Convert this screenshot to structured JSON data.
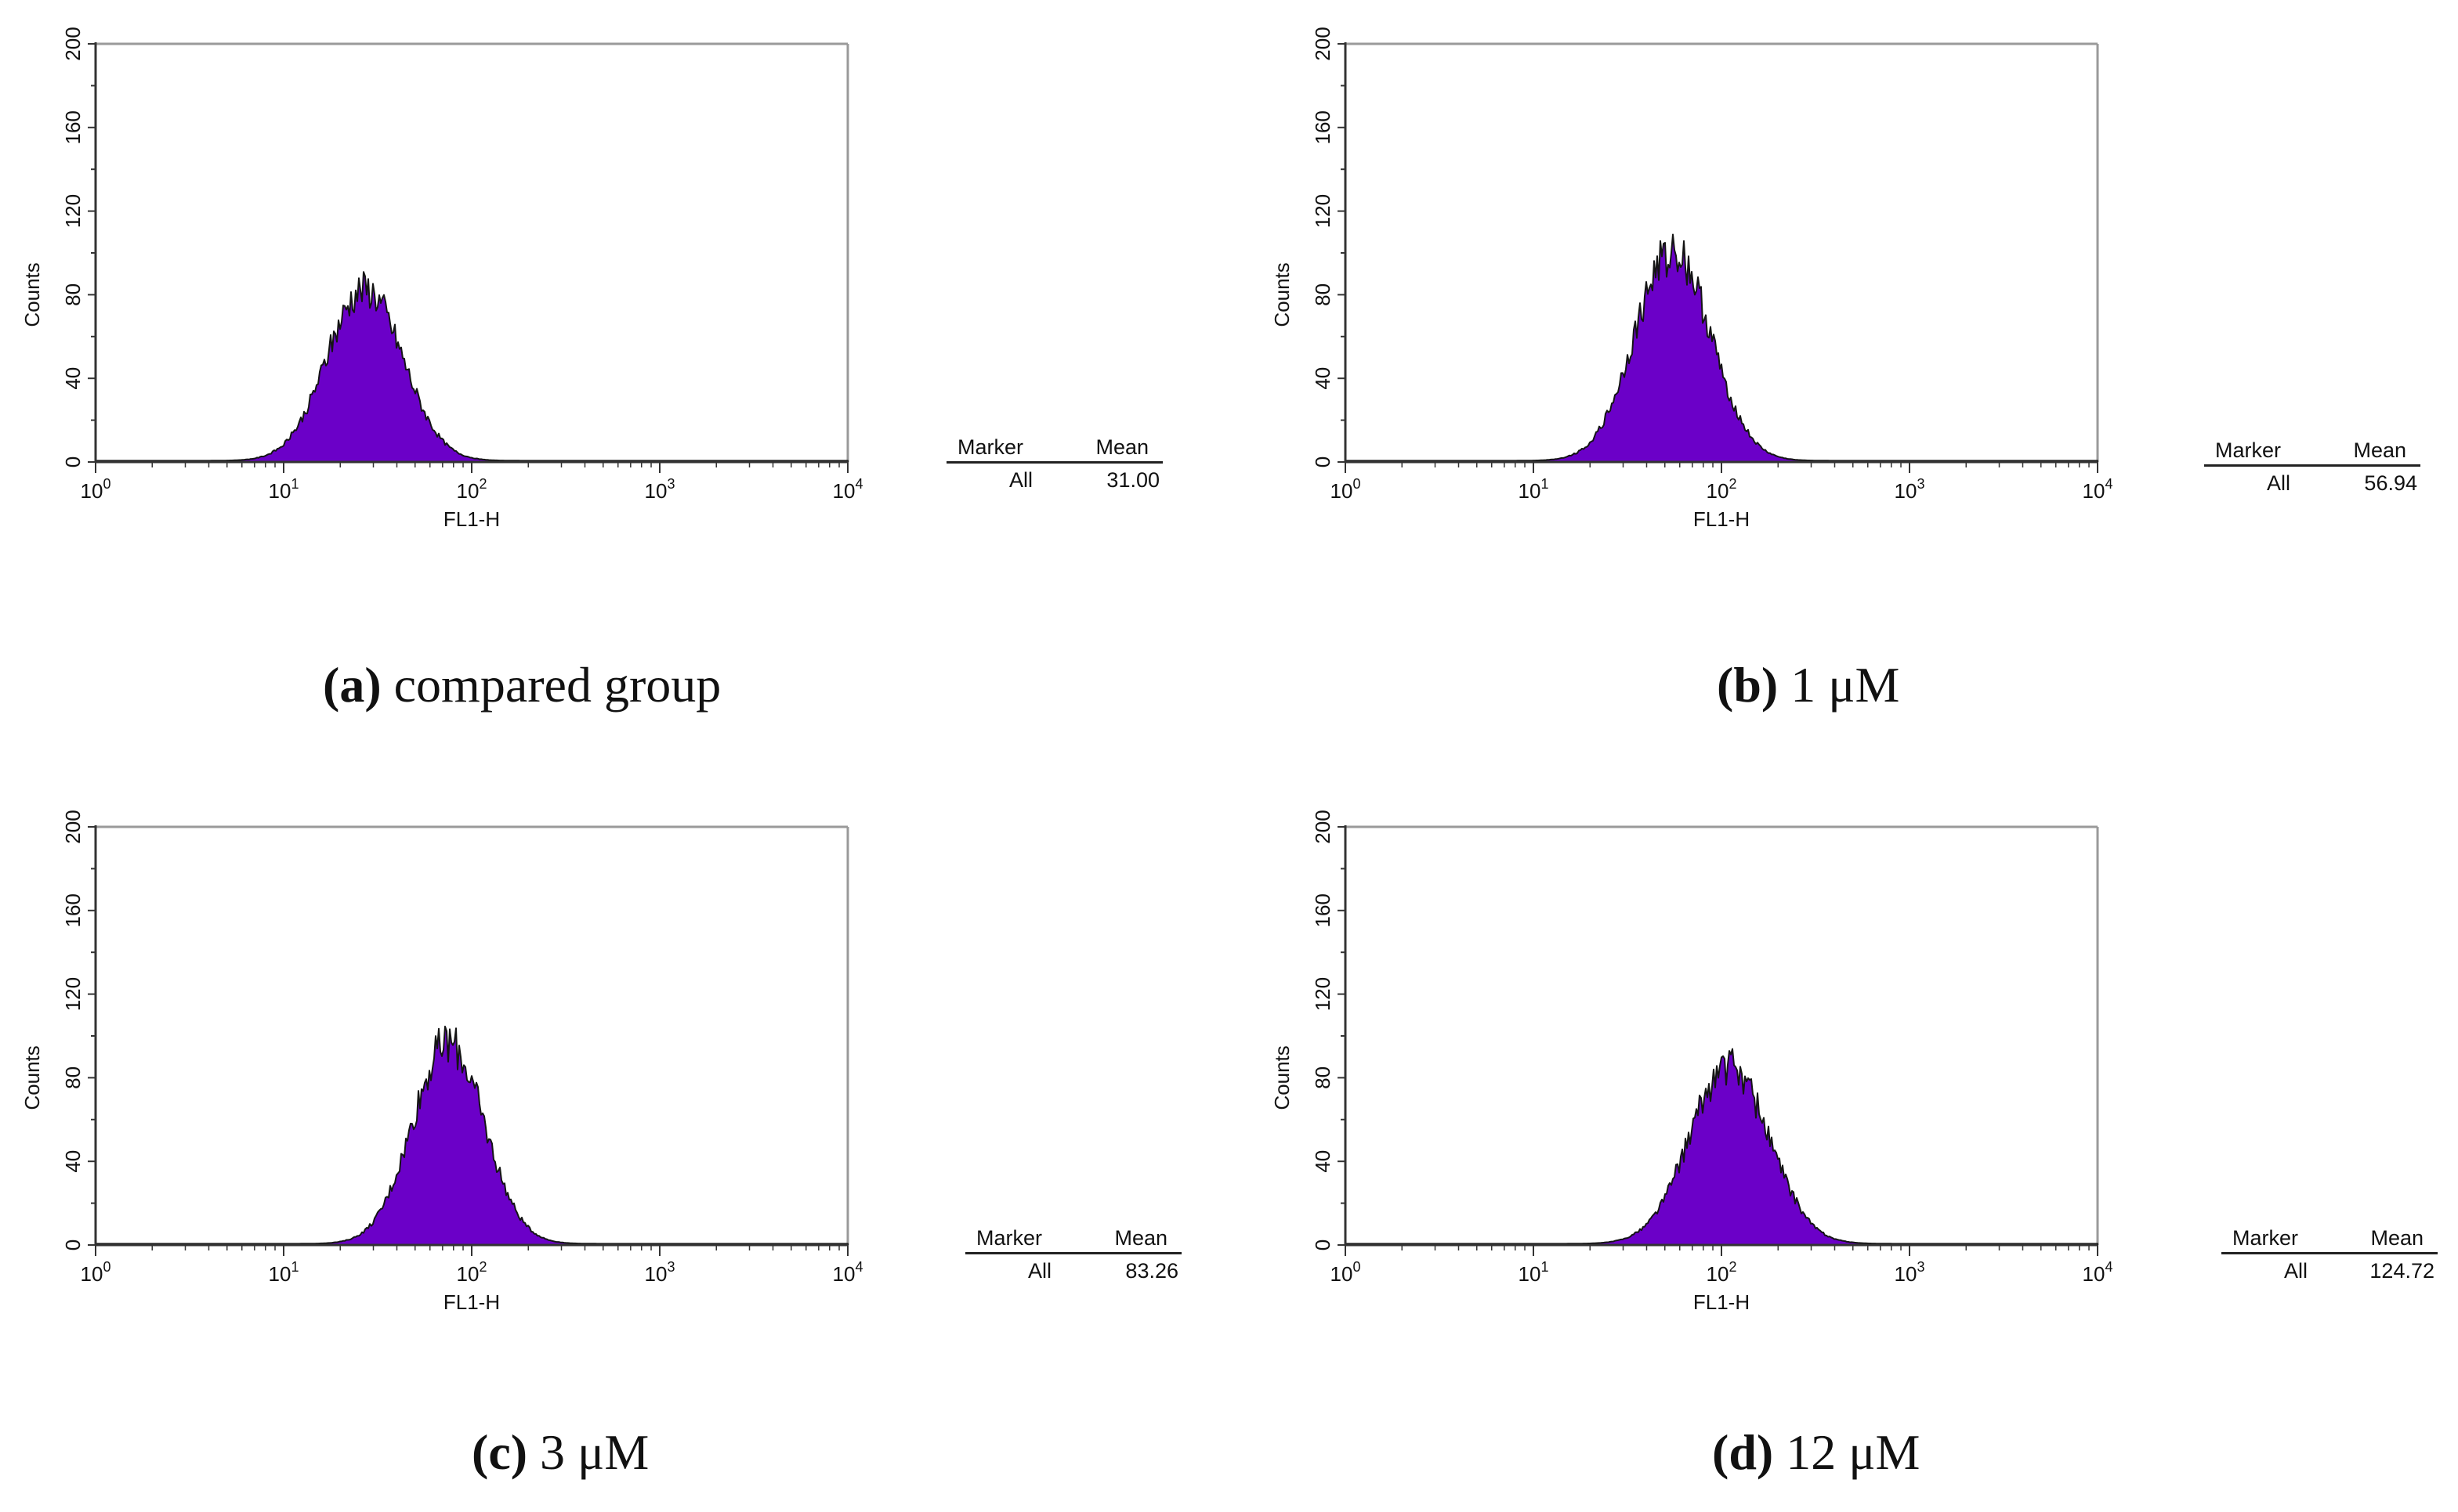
{
  "colors": {
    "fill": "#6b00c8",
    "stroke": "#141414",
    "axis": "#333333",
    "frame": "#9a9a9a"
  },
  "chart_data": [
    {
      "id": "a",
      "type": "area",
      "xlabel": "FL1-H",
      "ylabel": "Counts",
      "xscale": "log",
      "xlim": [
        1,
        10000
      ],
      "ylim": [
        0,
        200
      ],
      "yticks": [
        "0",
        "40",
        "80",
        "120",
        "160",
        "200"
      ],
      "xtick_base": "10",
      "xtick_exps": [
        "0",
        "1",
        "2",
        "3",
        "4"
      ],
      "peak_center": 27,
      "peak_height": 82,
      "peak_width": 0.2,
      "marker_header": "Marker",
      "mean_header": "Mean",
      "marker": "All",
      "mean": "31.00",
      "caption_letter": "(a)",
      "caption_text": " compared group"
    },
    {
      "id": "b",
      "type": "area",
      "xlabel": "FL1-H",
      "ylabel": "Counts",
      "xscale": "log",
      "xlim": [
        1,
        10000
      ],
      "ylim": [
        0,
        200
      ],
      "yticks": [
        "0",
        "40",
        "80",
        "120",
        "160",
        "200"
      ],
      "xtick_base": "10",
      "xtick_exps": [
        "0",
        "1",
        "2",
        "3",
        "4"
      ],
      "peak_center": 55,
      "peak_height": 100,
      "peak_width": 0.2,
      "marker_header": "Marker",
      "mean_header": "Mean",
      "marker": "All",
      "mean": "56.94",
      "caption_letter": "(b)",
      "caption_text": " 1 μM"
    },
    {
      "id": "c",
      "type": "area",
      "xlabel": "FL1-H",
      "ylabel": "Counts",
      "xscale": "log",
      "xlim": [
        1,
        10000
      ],
      "ylim": [
        0,
        200
      ],
      "yticks": [
        "0",
        "40",
        "80",
        "120",
        "160",
        "200"
      ],
      "xtick_base": "10",
      "xtick_exps": [
        "0",
        "1",
        "2",
        "3",
        "4"
      ],
      "peak_center": 75,
      "peak_height": 96,
      "peak_width": 0.19,
      "marker_header": "Marker",
      "mean_header": "Mean",
      "marker": "All",
      "mean": "83.26",
      "caption_letter": "(c)",
      "caption_text": " 3 μM"
    },
    {
      "id": "d",
      "type": "area",
      "xlabel": "FL1-H",
      "ylabel": "Counts",
      "xscale": "log",
      "xlim": [
        1,
        10000
      ],
      "ylim": [
        0,
        200
      ],
      "yticks": [
        "0",
        "40",
        "80",
        "120",
        "160",
        "200"
      ],
      "xtick_base": "10",
      "xtick_exps": [
        "0",
        "1",
        "2",
        "3",
        "4"
      ],
      "peak_center": 110,
      "peak_height": 85,
      "peak_width": 0.21,
      "marker_header": "Marker",
      "mean_header": "Mean",
      "marker": "All",
      "mean": "124.72",
      "caption_letter": "(d)",
      "caption_text": " 12 μM"
    }
  ]
}
